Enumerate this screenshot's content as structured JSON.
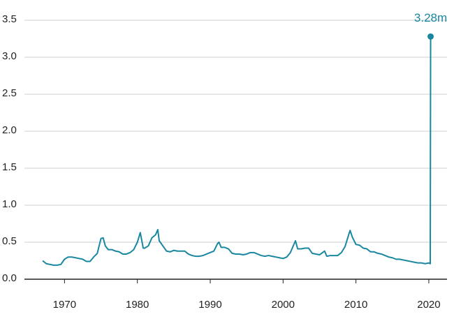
{
  "chart_data": {
    "type": "line",
    "annotation": "3.28m",
    "color": "#1a87a1",
    "grid": true,
    "xlim": [
      1964.5,
      2022.5
    ],
    "xticks": [
      1970,
      1980,
      1990,
      2000,
      2010,
      2020
    ],
    "ylim": [
      0,
      3.6
    ],
    "yticks": [
      {
        "value": 0,
        "label": "0.0"
      },
      0.5,
      {
        "value": 1,
        "label": "1.0"
      },
      1.5,
      {
        "value": 2,
        "label": "2.0"
      },
      2.5,
      {
        "value": 3,
        "label": "3.0"
      },
      3.5
    ],
    "x": [
      1967,
      1967.5,
      1968,
      1968.5,
      1969,
      1969.5,
      1970,
      1970.5,
      1971,
      1971.5,
      1972,
      1972.5,
      1973,
      1973.5,
      1974,
      1974.5,
      1975,
      1975.3,
      1975.6,
      1976,
      1976.5,
      1977,
      1977.5,
      1978,
      1978.5,
      1979,
      1979.5,
      1980,
      1980.4,
      1980.8,
      1981,
      1981.5,
      1982,
      1982.5,
      1982.8,
      1983,
      1983.5,
      1984,
      1984.5,
      1985,
      1985.5,
      1986,
      1986.5,
      1987,
      1987.5,
      1988,
      1988.5,
      1989,
      1989.5,
      1990,
      1990.5,
      1991,
      1991.2,
      1991.5,
      1992,
      1992.5,
      1993,
      1993.5,
      1994,
      1994.5,
      1995,
      1995.5,
      1996,
      1996.5,
      1997,
      1997.5,
      1998,
      1998.5,
      1999,
      1999.5,
      2000,
      2000.5,
      2001,
      2001.7,
      2002,
      2002.5,
      2003,
      2003.5,
      2004,
      2004.5,
      2005,
      2005.7,
      2006,
      2006.5,
      2007,
      2007.5,
      2008,
      2008.5,
      2009,
      2009.2,
      2009.5,
      2010,
      2010.5,
      2011,
      2011.5,
      2012,
      2012.5,
      2013,
      2013.5,
      2014,
      2014.5,
      2015,
      2015.5,
      2016,
      2016.5,
      2017,
      2017.5,
      2018,
      2018.5,
      2019,
      2019.5,
      2020,
      2020.2,
      2020.25
    ],
    "values": [
      0.25,
      0.21,
      0.2,
      0.19,
      0.19,
      0.2,
      0.27,
      0.3,
      0.3,
      0.29,
      0.28,
      0.27,
      0.24,
      0.24,
      0.3,
      0.35,
      0.55,
      0.56,
      0.45,
      0.4,
      0.4,
      0.38,
      0.37,
      0.34,
      0.34,
      0.36,
      0.4,
      0.5,
      0.63,
      0.42,
      0.42,
      0.45,
      0.56,
      0.6,
      0.67,
      0.52,
      0.45,
      0.38,
      0.37,
      0.39,
      0.38,
      0.38,
      0.38,
      0.34,
      0.32,
      0.31,
      0.31,
      0.32,
      0.34,
      0.36,
      0.38,
      0.48,
      0.5,
      0.43,
      0.43,
      0.41,
      0.35,
      0.34,
      0.34,
      0.33,
      0.34,
      0.36,
      0.36,
      0.34,
      0.32,
      0.31,
      0.32,
      0.31,
      0.3,
      0.29,
      0.28,
      0.3,
      0.36,
      0.52,
      0.41,
      0.41,
      0.42,
      0.42,
      0.35,
      0.34,
      0.33,
      0.38,
      0.31,
      0.32,
      0.32,
      0.32,
      0.36,
      0.44,
      0.6,
      0.66,
      0.57,
      0.47,
      0.46,
      0.42,
      0.41,
      0.37,
      0.37,
      0.35,
      0.34,
      0.32,
      0.3,
      0.29,
      0.27,
      0.27,
      0.26,
      0.25,
      0.24,
      0.23,
      0.22,
      0.22,
      0.21,
      0.22,
      0.21,
      3.28
    ]
  }
}
